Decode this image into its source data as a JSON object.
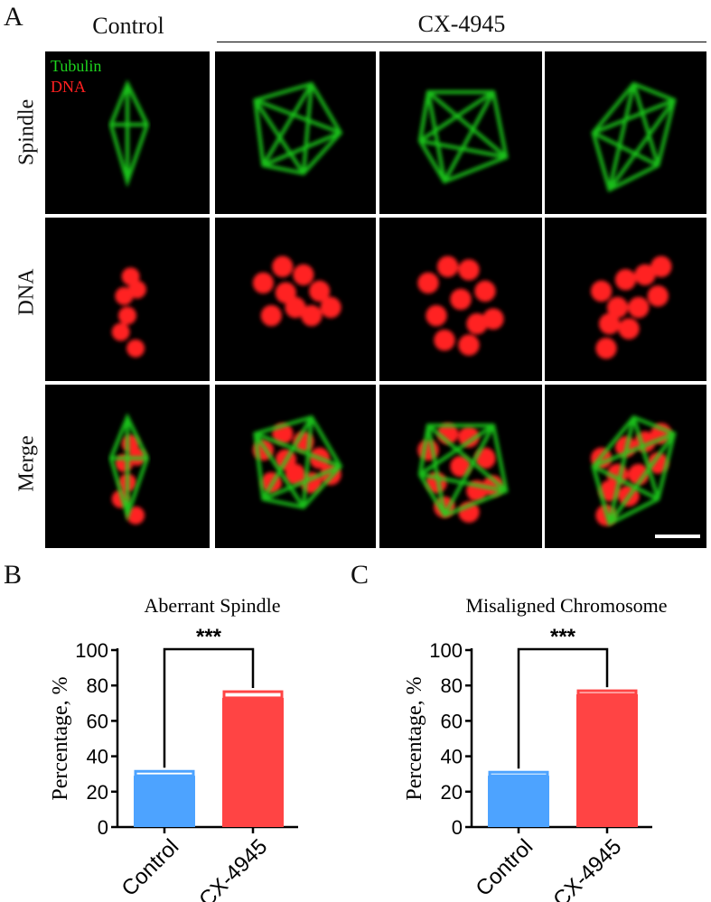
{
  "panels": {
    "a": "A",
    "b": "B",
    "c": "C"
  },
  "headers": {
    "control": "Control",
    "treatment": "CX-4945"
  },
  "rows": [
    "Spindle",
    "DNA",
    "Merge"
  ],
  "legend": {
    "green": "Tubulin",
    "red": "DNA",
    "green_color": "#1ed51e",
    "red_color": "#ff2020"
  },
  "chart_data": [
    {
      "type": "bar",
      "title": "Aberrant Spindle",
      "ylabel": "Percentage, %",
      "xlabel": "",
      "categories": [
        "Control",
        "CX-4945"
      ],
      "values": [
        29,
        73
      ],
      "errors": [
        2.5,
        3.5
      ],
      "colors": [
        "#4da3ff",
        "#ff4444"
      ],
      "ylim": [
        0,
        100
      ],
      "yticks": [
        0,
        20,
        40,
        60,
        80,
        100
      ],
      "significance": "***"
    },
    {
      "type": "bar",
      "title": "Misaligned Chromosome",
      "ylabel": "Percentage, %",
      "xlabel": "",
      "categories": [
        "Control",
        "CX-4945"
      ],
      "values": [
        29,
        75
      ],
      "errors": [
        2,
        2
      ],
      "colors": [
        "#4da3ff",
        "#ff4444"
      ],
      "ylim": [
        0,
        100
      ],
      "yticks": [
        0,
        20,
        40,
        60,
        80,
        100
      ],
      "significance": "***"
    }
  ]
}
